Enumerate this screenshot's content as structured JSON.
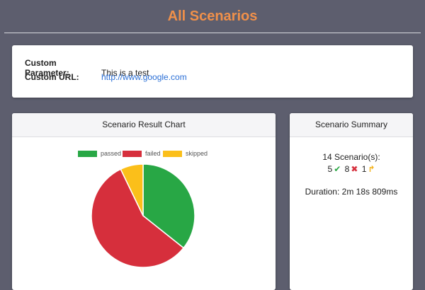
{
  "header": {
    "title": "All Scenarios"
  },
  "info": {
    "param_label": "Custom Parameter:",
    "param_value": "This is a test",
    "url_label": "Custom URL:",
    "url_value": "http://www.google.com"
  },
  "chart_card": {
    "title": "Scenario Result Chart"
  },
  "summary": {
    "title": "Scenario Summary",
    "scenarios_text": "14 Scenario(s):",
    "passed": "5",
    "failed": "8",
    "skipped": "1",
    "duration": "Duration: 2m 18s 809ms"
  },
  "colors": {
    "passed": "#28a745",
    "failed": "#d62f3c",
    "skipped": "#fbbf1a"
  },
  "chart_data": {
    "type": "pie",
    "categories": [
      "passed",
      "failed",
      "skipped"
    ],
    "values": [
      5,
      8,
      1
    ],
    "legend": "top"
  }
}
